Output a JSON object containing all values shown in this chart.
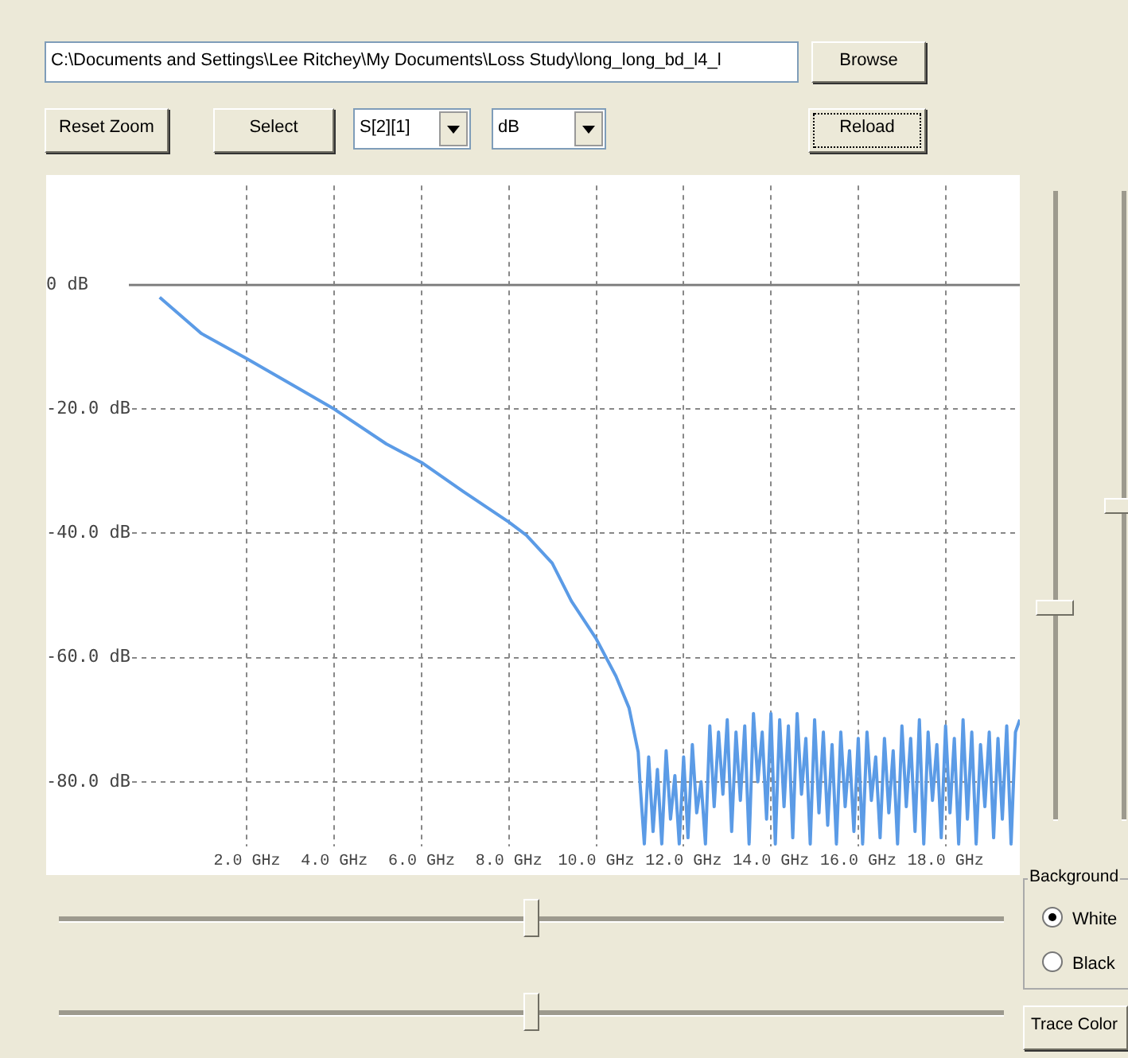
{
  "chart_data": {
    "type": "line",
    "color": "#5b9be6",
    "x": [
      0,
      0.95,
      2.0,
      3.14,
      4.0,
      5.19,
      6.0,
      6.94,
      8.0,
      8.4,
      8.99,
      9.43,
      10.0,
      10.45,
      10.75,
      10.96,
      11.0,
      11.1,
      11.2,
      11.3,
      11.4,
      11.5,
      11.6,
      11.7,
      11.8,
      11.9,
      12.0,
      12.1,
      12.2,
      12.3,
      12.4,
      12.5,
      12.6,
      12.7,
      12.8,
      12.9,
      13.0,
      13.1,
      13.2,
      13.3,
      13.4,
      13.5,
      13.6,
      13.7,
      13.8,
      13.9,
      14.0,
      14.1,
      14.2,
      14.3,
      14.4,
      14.5,
      14.6,
      14.7,
      14.8,
      14.9,
      15.0,
      15.1,
      15.2,
      15.3,
      15.4,
      15.5,
      15.6,
      15.7,
      15.8,
      15.9,
      16.0,
      16.1,
      16.2,
      16.3,
      16.4,
      16.5,
      16.6,
      16.7,
      16.8,
      16.9,
      17.0,
      17.1,
      17.2,
      17.3,
      17.4,
      17.5,
      17.6,
      17.7,
      17.8,
      17.9,
      18.0,
      18.1,
      18.2,
      18.3,
      18.4,
      18.5,
      18.6,
      18.7,
      18.8,
      18.9,
      19.0,
      19.1,
      19.2,
      19.3,
      19.4,
      19.5,
      19.6,
      19.7
    ],
    "values": [
      -2.0,
      -7.8,
      -11.9,
      -16.5,
      -20.0,
      -25.6,
      -28.6,
      -33.2,
      -38.2,
      -40.3,
      -44.8,
      -50.9,
      -57.0,
      -63.0,
      -68.1,
      -75.2,
      -80,
      -90,
      -76,
      -88,
      -78,
      -90,
      -75,
      -86,
      -79,
      -90,
      -76,
      -89,
      -74,
      -85,
      -80,
      -90,
      -71,
      -84,
      -72,
      -82,
      -70,
      -88,
      -72,
      -83,
      -71,
      -90,
      -69,
      -80,
      -72,
      -86,
      -69,
      -90,
      -70,
      -84,
      -71,
      -89,
      -69,
      -82,
      -73,
      -90,
      -70,
      -85,
      -72,
      -87,
      -74,
      -90,
      -72,
      -84,
      -75,
      -88,
      -73,
      -90,
      -72,
      -83,
      -76,
      -89,
      -73,
      -85,
      -75,
      -90,
      -71,
      -84,
      -73,
      -88,
      -70,
      -90,
      -72,
      -83,
      -74,
      -89,
      -71,
      -85,
      -73,
      -90,
      -70,
      -86,
      -72,
      -90,
      -74,
      -84,
      -72,
      -89,
      -73,
      -86,
      -71,
      -90,
      -72,
      -70
    ],
    "xlim": [
      -2.6,
      19.7
    ],
    "ylim": [
      -90.4,
      16
    ],
    "xticks": [
      {
        "value": 2,
        "label": "2.0 GHz"
      },
      {
        "value": 4,
        "label": "4.0 GHz"
      },
      {
        "value": 6,
        "label": "6.0 GHz"
      },
      {
        "value": 8,
        "label": "8.0 GHz"
      },
      {
        "value": 10,
        "label": "10.0 GHz"
      },
      {
        "value": 12,
        "label": "12.0 GHz"
      },
      {
        "value": 14,
        "label": "14.0 GHz"
      },
      {
        "value": 16,
        "label": "16.0 GHz"
      },
      {
        "value": 18,
        "label": "18.0 GHz"
      }
    ],
    "yticks": [
      {
        "value": -80,
        "label": "-80.0 dB"
      },
      {
        "value": -60,
        "label": "-60.0 dB"
      },
      {
        "value": -40,
        "label": "-40.0 dB"
      },
      {
        "value": -20,
        "label": "-20.0 dB"
      },
      {
        "value": 0,
        "label": "0 dB"
      }
    ],
    "ref_lines": [
      {
        "axis": "y",
        "value": 0,
        "color": "#808080"
      }
    ],
    "grid": true,
    "line_style": "solid",
    "marker": "none",
    "legend": false,
    "annotations": [
      "C:\\Documents and Settings\\Lee Ritchey\\My Documents\\Loss Study\\long_long_bd_l4_l",
      "Browse",
      "Reset Zoom",
      "Select",
      "S[2][1]",
      "dB",
      "Reload",
      "Background",
      "White",
      "Black",
      "Trace Color"
    ]
  }
}
